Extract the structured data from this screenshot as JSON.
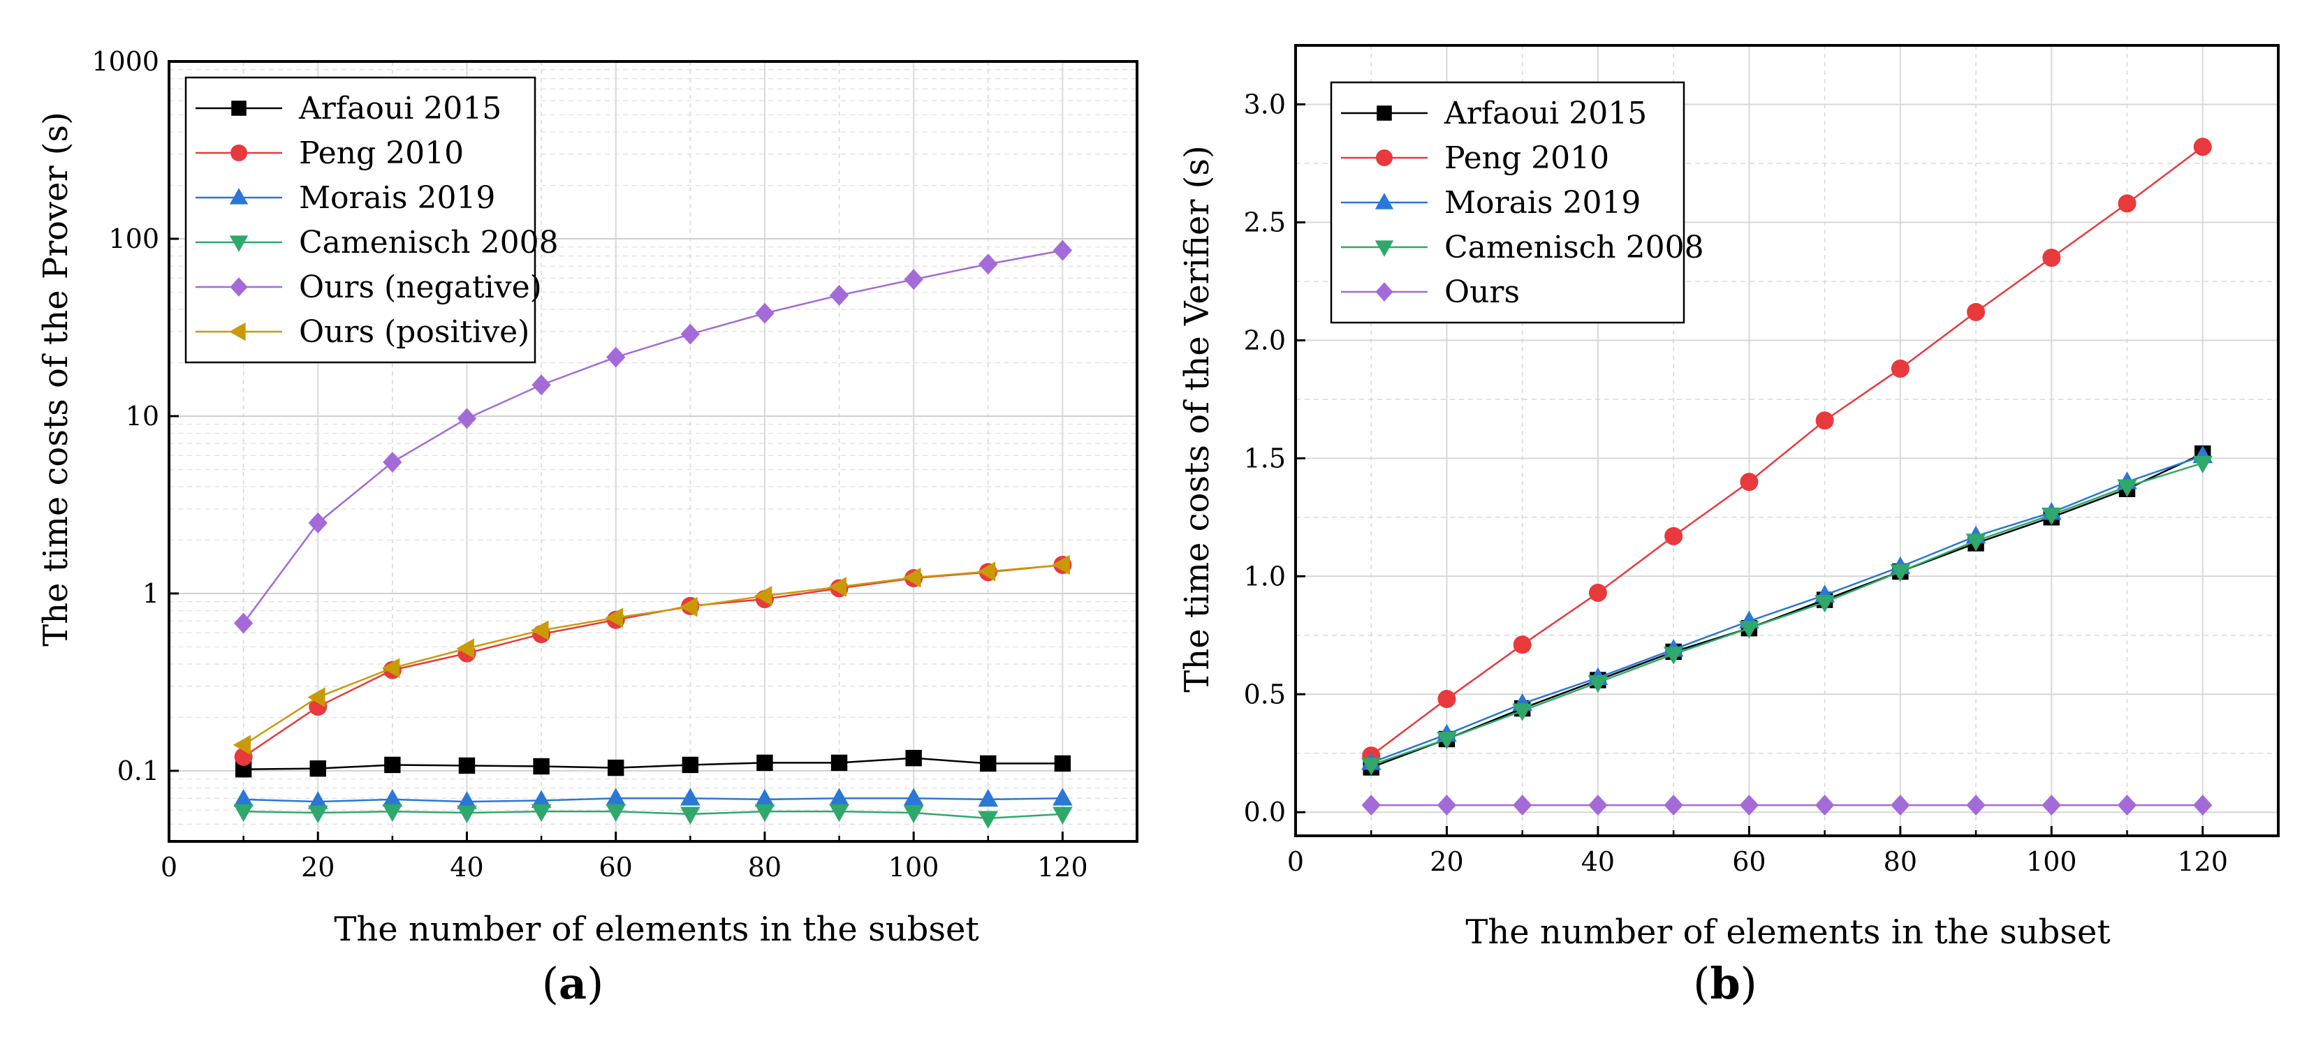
{
  "chart_data": [
    {
      "type": "line",
      "panel_label": "a",
      "x": [
        10,
        20,
        30,
        40,
        50,
        60,
        70,
        80,
        90,
        100,
        110,
        120
      ],
      "xlabel": "The number of elements in the subset",
      "ylabel": "The time costs of the Prover (s)",
      "xlim": [
        0,
        130
      ],
      "ylim": [
        0.04,
        1000
      ],
      "yscale": "log",
      "xticks": [
        0,
        20,
        40,
        60,
        80,
        100,
        120
      ],
      "yticks": [
        0.1,
        1,
        10,
        100,
        1000
      ],
      "ytick_labels": [
        "0.1",
        "1",
        "10",
        "100",
        "1000"
      ],
      "grid": true,
      "legend_position": "top-left",
      "series": [
        {
          "name": "Arfaoui 2015",
          "color": "#000000",
          "marker": "square",
          "values": [
            0.102,
            0.103,
            0.108,
            0.107,
            0.106,
            0.104,
            0.108,
            0.111,
            0.111,
            0.118,
            0.11,
            0.11
          ]
        },
        {
          "name": "Peng 2010",
          "color": "#e8393c",
          "marker": "circle",
          "values": [
            0.12,
            0.23,
            0.37,
            0.46,
            0.59,
            0.71,
            0.85,
            0.93,
            1.07,
            1.22,
            1.32,
            1.45
          ]
        },
        {
          "name": "Morais 2019",
          "color": "#2a77d6",
          "marker": "triangle-up",
          "values": [
            0.069,
            0.067,
            0.069,
            0.067,
            0.068,
            0.07,
            0.07,
            0.069,
            0.07,
            0.07,
            0.069,
            0.07
          ]
        },
        {
          "name": "Camenisch 2008",
          "color": "#2ea86b",
          "marker": "triangle-down",
          "values": [
            0.059,
            0.058,
            0.059,
            0.058,
            0.059,
            0.059,
            0.057,
            0.059,
            0.059,
            0.058,
            0.054,
            0.057
          ]
        },
        {
          "name": "Ours (negative)",
          "color": "#a36ad8",
          "marker": "diamond",
          "values": [
            0.68,
            2.5,
            5.5,
            9.7,
            15,
            21.5,
            29,
            38,
            48,
            59,
            72,
            86
          ]
        },
        {
          "name": "Ours (positive)",
          "color": "#c99a06",
          "marker": "triangle-left",
          "values": [
            0.14,
            0.26,
            0.38,
            0.49,
            0.62,
            0.73,
            0.84,
            0.97,
            1.09,
            1.23,
            1.33,
            1.45
          ]
        }
      ]
    },
    {
      "type": "line",
      "panel_label": "b",
      "x": [
        10,
        20,
        30,
        40,
        50,
        60,
        70,
        80,
        90,
        100,
        110,
        120
      ],
      "xlabel": "The number of elements in the subset",
      "ylabel": "The time costs of the Verifier (s)",
      "xlim": [
        0,
        130
      ],
      "ylim": [
        -0.1,
        3.25
      ],
      "yscale": "linear",
      "xticks": [
        0,
        20,
        40,
        60,
        80,
        100,
        120
      ],
      "yticks": [
        0.0,
        0.5,
        1.0,
        1.5,
        2.0,
        2.5,
        3.0
      ],
      "ytick_labels": [
        "0.0",
        "0.5",
        "1.0",
        "1.5",
        "2.0",
        "2.5",
        "3.0"
      ],
      "grid": true,
      "legend_position": "top-left",
      "series": [
        {
          "name": "Arfaoui 2015",
          "color": "#000000",
          "marker": "square",
          "values": [
            0.19,
            0.31,
            0.44,
            0.56,
            0.68,
            0.78,
            0.9,
            1.02,
            1.14,
            1.25,
            1.37,
            1.52
          ]
        },
        {
          "name": "Peng 2010",
          "color": "#e8393c",
          "marker": "circle",
          "values": [
            0.24,
            0.48,
            0.71,
            0.93,
            1.17,
            1.4,
            1.66,
            1.88,
            2.12,
            2.35,
            2.58,
            2.82
          ]
        },
        {
          "name": "Morais 2019",
          "color": "#2a77d6",
          "marker": "triangle-up",
          "values": [
            0.21,
            0.33,
            0.46,
            0.57,
            0.69,
            0.81,
            0.92,
            1.04,
            1.17,
            1.27,
            1.4,
            1.51
          ]
        },
        {
          "name": "Camenisch 2008",
          "color": "#2ea86b",
          "marker": "triangle-down",
          "values": [
            0.2,
            0.31,
            0.43,
            0.55,
            0.67,
            0.78,
            0.89,
            1.02,
            1.15,
            1.26,
            1.38,
            1.48
          ]
        },
        {
          "name": "Ours",
          "color": "#a36ad8",
          "marker": "diamond",
          "values": [
            0.03,
            0.03,
            0.03,
            0.03,
            0.03,
            0.03,
            0.03,
            0.03,
            0.03,
            0.03,
            0.03,
            0.03
          ]
        }
      ]
    }
  ]
}
